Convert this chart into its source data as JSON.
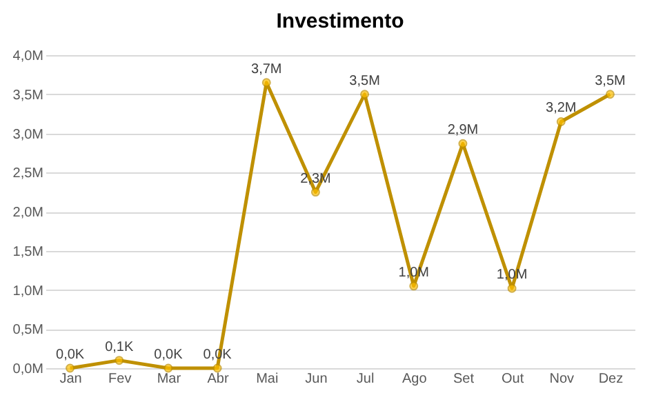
{
  "chart_data": {
    "type": "line",
    "title": "Investimento",
    "categories": [
      "Jan",
      "Fev",
      "Mar",
      "Abr",
      "Mai",
      "Jun",
      "Jul",
      "Ago",
      "Set",
      "Out",
      "Nov",
      "Dez"
    ],
    "series": [
      {
        "color": "#bf9000",
        "values": [
          0,
          0.1,
          0,
          0,
          3.65,
          2.25,
          3.5,
          1.05,
          2.87,
          1.02,
          3.15,
          3.5
        ],
        "value_labels": [
          "0,0K",
          "0,1K",
          "0,0K",
          "0,0K",
          "3,7M",
          "2,3M",
          "3,5M",
          "1,0M",
          "2,9M",
          "1,0M",
          "3,2M",
          "3,5M"
        ]
      }
    ],
    "ylim": [
      0,
      4
    ],
    "yticks": [
      {
        "value": 0,
        "label": "0,0M"
      },
      {
        "value": 0.5,
        "label": "0,5M"
      },
      {
        "value": 1,
        "label": "1,0M"
      },
      {
        "value": 1.5,
        "label": "1,5M"
      },
      {
        "value": 2,
        "label": "2,0M"
      },
      {
        "value": 2.5,
        "label": "2,5M"
      },
      {
        "value": 3,
        "label": "3,0M"
      },
      {
        "value": 3.5,
        "label": "3,5M"
      },
      {
        "value": 4,
        "label": "4,0M"
      }
    ],
    "grid": "y",
    "marker": "circle",
    "line_style": "solid"
  }
}
